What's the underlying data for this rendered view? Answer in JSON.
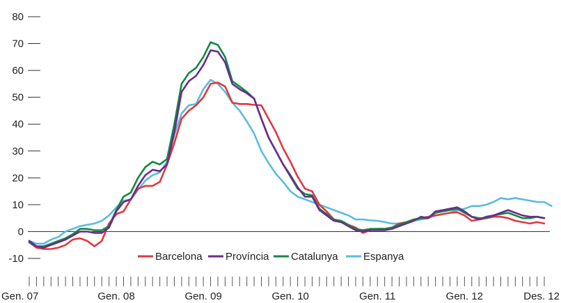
{
  "chart_data": {
    "type": "line",
    "title": "",
    "xlabel": "",
    "ylabel": "",
    "ylim": [
      -10,
      80
    ],
    "yticks": [
      -10,
      0,
      10,
      20,
      30,
      40,
      50,
      60,
      70,
      80
    ],
    "grid": false,
    "legend_position": "bottom-center",
    "x_start": "Gen. 07",
    "x_end": "Des. 12",
    "x_tick_labels": [
      "Gen. 07",
      "Gen. 08",
      "Gen. 09",
      "Gen. 10",
      "Gen. 11",
      "Gen. 12",
      "Des. 12"
    ],
    "series": [
      {
        "name": "Barcelona",
        "color": "#e0383e",
        "values": [
          -4,
          -6,
          -6.5,
          -6.5,
          -6,
          -5,
          -3,
          -2.5,
          -3.5,
          -5.5,
          -3.5,
          3,
          6.5,
          7.5,
          12,
          16,
          17,
          17,
          18.5,
          25,
          33,
          42,
          45,
          47,
          50,
          55,
          55.5,
          54,
          48,
          47.5,
          47.5,
          47.2,
          47,
          42,
          37,
          31,
          26,
          20.5,
          16,
          15,
          10,
          7.5,
          4.5,
          3.5,
          2.5,
          1.5,
          -0.5,
          0.5,
          1,
          1,
          1.5,
          3,
          3.5,
          4.5,
          5,
          5.5,
          6,
          6.5,
          7,
          7.2,
          6,
          4,
          4.5,
          5,
          5.5,
          5.5,
          5,
          4,
          3.5,
          3,
          3.5,
          3
        ]
      },
      {
        "name": "Província",
        "color": "#6a2c8e",
        "values": [
          -3.5,
          -5.5,
          -6,
          -5,
          -4,
          -3,
          -1.5,
          0,
          0,
          -0.5,
          -0.5,
          1.5,
          7.5,
          11,
          12,
          17,
          21,
          23,
          22.5,
          25,
          37,
          52,
          56,
          58,
          62,
          67.5,
          67,
          63,
          55,
          53,
          51.5,
          49.5,
          42,
          35,
          30,
          25,
          21,
          16.5,
          13,
          13,
          8,
          6,
          4,
          3.5,
          2,
          0.5,
          0,
          0.5,
          0.5,
          0.5,
          1,
          2,
          3,
          4,
          5.5,
          5,
          7.5,
          8,
          8.5,
          9,
          7.5,
          5.5,
          4.5,
          5.5,
          6,
          7,
          8,
          7,
          6,
          5.5,
          5.5,
          5
        ]
      },
      {
        "name": "Catalunya",
        "color": "#0f8a3e",
        "values": [
          -4,
          -5.5,
          -5.5,
          -4.5,
          -3.5,
          -2.5,
          -1,
          1,
          1,
          0.5,
          0.5,
          2,
          8,
          13,
          14.5,
          20,
          24,
          26,
          25,
          27,
          40,
          55,
          59,
          61,
          65,
          70.5,
          69.5,
          65,
          56,
          54,
          52,
          49.5,
          42,
          35,
          30,
          25,
          20.5,
          16,
          14,
          13.5,
          8.5,
          6.5,
          4.5,
          4,
          2.5,
          1,
          0.5,
          1,
          1,
          1,
          1.5,
          2.5,
          3.5,
          4.5,
          5,
          5,
          7,
          7.5,
          8,
          8.5,
          7,
          5.5,
          5,
          5,
          6,
          6.5,
          7,
          6,
          5,
          5,
          5.5,
          5
        ]
      },
      {
        "name": "Espanya",
        "color": "#5bbbe0",
        "values": [
          -3.5,
          -4.5,
          -4.5,
          -3,
          -2,
          0,
          1,
          2,
          2.5,
          3,
          4,
          6,
          9,
          11.5,
          12,
          15.5,
          19,
          21,
          22,
          26,
          36,
          44,
          47,
          47.5,
          53,
          56.5,
          55,
          52,
          48,
          45,
          41,
          36.5,
          30,
          25.5,
          21.5,
          18.5,
          15,
          13,
          12,
          11,
          10,
          9,
          8,
          7,
          6,
          4.5,
          4.5,
          4.2,
          4,
          3.5,
          3,
          3,
          3.5,
          4,
          4.5,
          5,
          6,
          6.5,
          7,
          8,
          8.5,
          9.5,
          9.5,
          10,
          11,
          12.5,
          12,
          12.5,
          12,
          11.5,
          11,
          11,
          9.5
        ]
      }
    ]
  }
}
